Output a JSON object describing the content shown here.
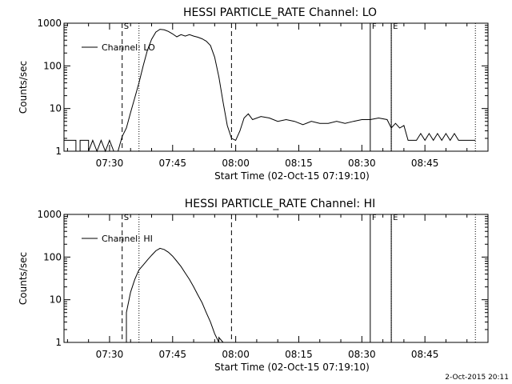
{
  "stamp": "2-Oct-2015 20:11",
  "chart_data": [
    {
      "type": "line",
      "title": "HESSI PARTICLE_RATE Channel: LO",
      "xlabel": "Start Time (02-Oct-15 07:19:10)",
      "ylabel": "Counts/sec",
      "y_scale": "log",
      "ylim": [
        1,
        1000
      ],
      "xlim": [
        "07:19:10",
        "09:00:00"
      ],
      "x_ticks": [
        "07:30",
        "07:45",
        "08:00",
        "08:15",
        "08:30",
        "08:45"
      ],
      "y_ticks": [
        "1",
        "10",
        "100",
        "1000"
      ],
      "legend": "Channel: LO",
      "legend_position": "top-left",
      "markers": [
        {
          "label": "S",
          "time": "07:33",
          "style": "dashed"
        },
        {
          "label": "",
          "time": "07:37",
          "style": "dotted"
        },
        {
          "label": "",
          "time": "07:59",
          "style": "dashed"
        },
        {
          "label": "F",
          "time": "08:32",
          "style": "solid"
        },
        {
          "label": "E",
          "time": "08:37",
          "style": "solid"
        },
        {
          "label": "",
          "time": "08:37",
          "style": "dotted"
        },
        {
          "label": "",
          "time": "08:57",
          "style": "dotted"
        }
      ],
      "series": [
        {
          "name": "Channel: LO",
          "points": [
            [
              "07:19:10",
              1.8
            ],
            [
              "07:22",
              1.8
            ],
            [
              "07:22",
              1
            ],
            [
              "07:23",
              1
            ],
            [
              "07:23",
              1.8
            ],
            [
              "07:25",
              1.8
            ],
            [
              "07:25",
              1
            ],
            [
              "07:26",
              1.8
            ],
            [
              "07:27",
              1
            ],
            [
              "07:28",
              1.8
            ],
            [
              "07:29",
              1
            ],
            [
              "07:30",
              1.8
            ],
            [
              "07:31",
              1
            ],
            [
              "07:32",
              1
            ],
            [
              "07:33",
              2.2
            ],
            [
              "07:34",
              3.5
            ],
            [
              "07:35",
              8
            ],
            [
              "07:36",
              18
            ],
            [
              "07:37",
              40
            ],
            [
              "07:38",
              100
            ],
            [
              "07:39",
              230
            ],
            [
              "07:40",
              420
            ],
            [
              "07:41",
              620
            ],
            [
              "07:42",
              720
            ],
            [
              "07:43",
              700
            ],
            [
              "07:44",
              640
            ],
            [
              "07:45",
              560
            ],
            [
              "07:46",
              480
            ],
            [
              "07:47",
              540
            ],
            [
              "07:48",
              500
            ],
            [
              "07:49",
              540
            ],
            [
              "07:50",
              500
            ],
            [
              "07:51",
              470
            ],
            [
              "07:52",
              430
            ],
            [
              "07:53",
              380
            ],
            [
              "07:54",
              300
            ],
            [
              "07:55",
              160
            ],
            [
              "07:56",
              55
            ],
            [
              "07:57",
              14
            ],
            [
              "07:58",
              4
            ],
            [
              "07:59",
              2
            ],
            [
              "08:00",
              1.8
            ],
            [
              "08:01",
              3
            ],
            [
              "08:02",
              6
            ],
            [
              "08:03",
              7.5
            ],
            [
              "08:04",
              5.5
            ],
            [
              "08:06",
              6.5
            ],
            [
              "08:08",
              6
            ],
            [
              "08:10",
              5
            ],
            [
              "08:12",
              5.5
            ],
            [
              "08:14",
              5
            ],
            [
              "08:16",
              4.2
            ],
            [
              "08:18",
              5
            ],
            [
              "08:20",
              4.5
            ],
            [
              "08:22",
              4.5
            ],
            [
              "08:24",
              5
            ],
            [
              "08:26",
              4.5
            ],
            [
              "08:28",
              5
            ],
            [
              "08:30",
              5.5
            ],
            [
              "08:32",
              5.5
            ],
            [
              "08:34",
              6
            ],
            [
              "08:36",
              5.5
            ],
            [
              "08:37",
              3.5
            ],
            [
              "08:38",
              4.5
            ],
            [
              "08:39",
              3.5
            ],
            [
              "08:40",
              4
            ],
            [
              "08:41",
              1.8
            ],
            [
              "08:43",
              1.8
            ],
            [
              "08:44",
              2.6
            ],
            [
              "08:45",
              1.8
            ],
            [
              "08:46",
              2.6
            ],
            [
              "08:47",
              1.8
            ],
            [
              "08:48",
              2.6
            ],
            [
              "08:49",
              1.8
            ],
            [
              "08:50",
              2.6
            ],
            [
              "08:51",
              1.8
            ],
            [
              "08:52",
              2.6
            ],
            [
              "08:53",
              1.8
            ],
            [
              "08:57",
              1.8
            ]
          ]
        }
      ]
    },
    {
      "type": "line",
      "title": "HESSI PARTICLE_RATE Channel: HI",
      "xlabel": "Start Time (02-Oct-15 07:19:10)",
      "ylabel": "Counts/sec",
      "y_scale": "log",
      "ylim": [
        1,
        1000
      ],
      "xlim": [
        "07:19:10",
        "09:00:00"
      ],
      "x_ticks": [
        "07:30",
        "07:45",
        "08:00",
        "08:15",
        "08:30",
        "08:45"
      ],
      "y_ticks": [
        "1",
        "10",
        "100",
        "1000"
      ],
      "legend": "Channel: HI",
      "legend_position": "top-left",
      "markers": [
        {
          "label": "S",
          "time": "07:33",
          "style": "dashed"
        },
        {
          "label": "",
          "time": "07:37",
          "style": "dotted"
        },
        {
          "label": "",
          "time": "07:59",
          "style": "dashed"
        },
        {
          "label": "F",
          "time": "08:32",
          "style": "solid"
        },
        {
          "label": "E",
          "time": "08:37",
          "style": "solid"
        },
        {
          "label": "",
          "time": "08:37",
          "style": "dotted"
        },
        {
          "label": "",
          "time": "08:57",
          "style": "dotted"
        }
      ],
      "series": [
        {
          "name": "Channel: HI",
          "points": [
            [
              "07:34",
              1
            ],
            [
              "07:34",
              5
            ],
            [
              "07:35",
              15
            ],
            [
              "07:36",
              30
            ],
            [
              "07:37",
              50
            ],
            [
              "07:38",
              65
            ],
            [
              "07:39",
              85
            ],
            [
              "07:40",
              110
            ],
            [
              "07:41",
              140
            ],
            [
              "07:42",
              160
            ],
            [
              "07:43",
              150
            ],
            [
              "07:44",
              130
            ],
            [
              "07:45",
              105
            ],
            [
              "07:46",
              80
            ],
            [
              "07:47",
              60
            ],
            [
              "07:48",
              42
            ],
            [
              "07:49",
              30
            ],
            [
              "07:50",
              20
            ],
            [
              "07:51",
              13
            ],
            [
              "07:52",
              8.5
            ],
            [
              "07:53",
              5
            ],
            [
              "07:54",
              3
            ],
            [
              "07:55",
              1.6
            ],
            [
              "07:56",
              1
            ],
            [
              "07:56",
              1.3
            ],
            [
              "07:57",
              1
            ]
          ]
        }
      ]
    }
  ]
}
